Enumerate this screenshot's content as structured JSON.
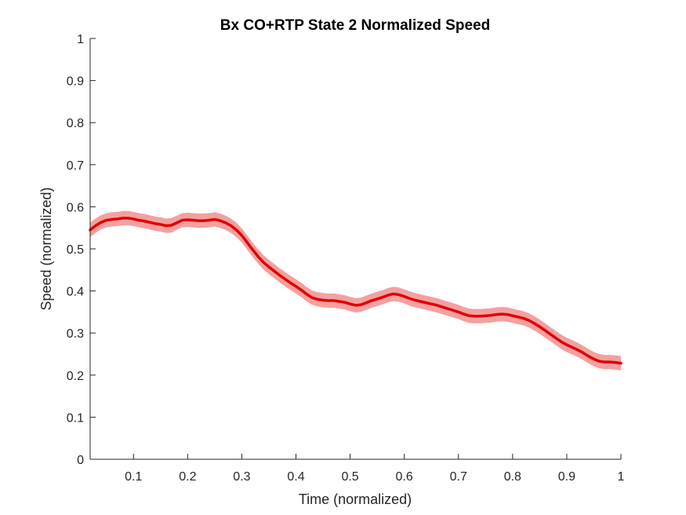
{
  "chart_data": {
    "type": "line",
    "title": "Bx  CO+RTP State 2 Normalized Speed",
    "xlabel": "Time (normalized)",
    "ylabel": "Speed (normalized)",
    "xlim": [
      0.02,
      1.0
    ],
    "ylim": [
      0,
      1
    ],
    "xticks": [
      0.1,
      0.2,
      0.3,
      0.4,
      0.5,
      0.6,
      0.7,
      0.8,
      0.9,
      1
    ],
    "xtick_labels": [
      "0.1",
      "0.2",
      "0.3",
      "0.4",
      "0.5",
      "0.6",
      "0.7",
      "0.8",
      "0.9",
      "1"
    ],
    "yticks": [
      0,
      0.1,
      0.2,
      0.3,
      0.4,
      0.5,
      0.6,
      0.7,
      0.8,
      0.9,
      1
    ],
    "ytick_labels": [
      "0",
      "0.1",
      "0.2",
      "0.3",
      "0.4",
      "0.5",
      "0.6",
      "0.7",
      "0.8",
      "0.9",
      "1"
    ],
    "grid": false,
    "band_half_width": 0.017,
    "colors": {
      "line": "#e00000",
      "band": "#f4a0a0",
      "axis": "#262626"
    },
    "series": [
      {
        "x": [
          0.02,
          0.03,
          0.04,
          0.05,
          0.06,
          0.07,
          0.08,
          0.09,
          0.1,
          0.11,
          0.12,
          0.13,
          0.14,
          0.15,
          0.16,
          0.17,
          0.18,
          0.19,
          0.2,
          0.21,
          0.22,
          0.23,
          0.24,
          0.25,
          0.26,
          0.27,
          0.28,
          0.29,
          0.3,
          0.31,
          0.32,
          0.33,
          0.34,
          0.35,
          0.36,
          0.37,
          0.38,
          0.39,
          0.4,
          0.41,
          0.42,
          0.43,
          0.44,
          0.45,
          0.46,
          0.47,
          0.48,
          0.49,
          0.5,
          0.51,
          0.52,
          0.53,
          0.54,
          0.55,
          0.56,
          0.57,
          0.58,
          0.59,
          0.6,
          0.61,
          0.62,
          0.63,
          0.64,
          0.65,
          0.66,
          0.67,
          0.68,
          0.69,
          0.7,
          0.71,
          0.72,
          0.73,
          0.74,
          0.75,
          0.76,
          0.77,
          0.78,
          0.79,
          0.8,
          0.81,
          0.82,
          0.83,
          0.84,
          0.85,
          0.86,
          0.87,
          0.88,
          0.89,
          0.9,
          0.91,
          0.92,
          0.93,
          0.94,
          0.95,
          0.96,
          0.97,
          0.98,
          0.99,
          1.0
        ],
        "y": [
          0.545,
          0.555,
          0.563,
          0.568,
          0.57,
          0.571,
          0.573,
          0.573,
          0.571,
          0.568,
          0.566,
          0.563,
          0.56,
          0.558,
          0.555,
          0.556,
          0.562,
          0.568,
          0.569,
          0.568,
          0.567,
          0.567,
          0.568,
          0.57,
          0.567,
          0.562,
          0.555,
          0.545,
          0.532,
          0.515,
          0.498,
          0.482,
          0.468,
          0.457,
          0.447,
          0.437,
          0.428,
          0.419,
          0.411,
          0.402,
          0.392,
          0.384,
          0.38,
          0.378,
          0.377,
          0.377,
          0.375,
          0.373,
          0.369,
          0.366,
          0.367,
          0.372,
          0.377,
          0.381,
          0.385,
          0.39,
          0.393,
          0.391,
          0.387,
          0.382,
          0.378,
          0.375,
          0.372,
          0.369,
          0.366,
          0.362,
          0.358,
          0.354,
          0.35,
          0.345,
          0.341,
          0.34,
          0.34,
          0.341,
          0.342,
          0.344,
          0.345,
          0.344,
          0.341,
          0.338,
          0.335,
          0.33,
          0.323,
          0.315,
          0.306,
          0.297,
          0.288,
          0.279,
          0.272,
          0.266,
          0.26,
          0.253,
          0.245,
          0.238,
          0.233,
          0.231,
          0.231,
          0.23,
          0.228
        ]
      }
    ]
  }
}
